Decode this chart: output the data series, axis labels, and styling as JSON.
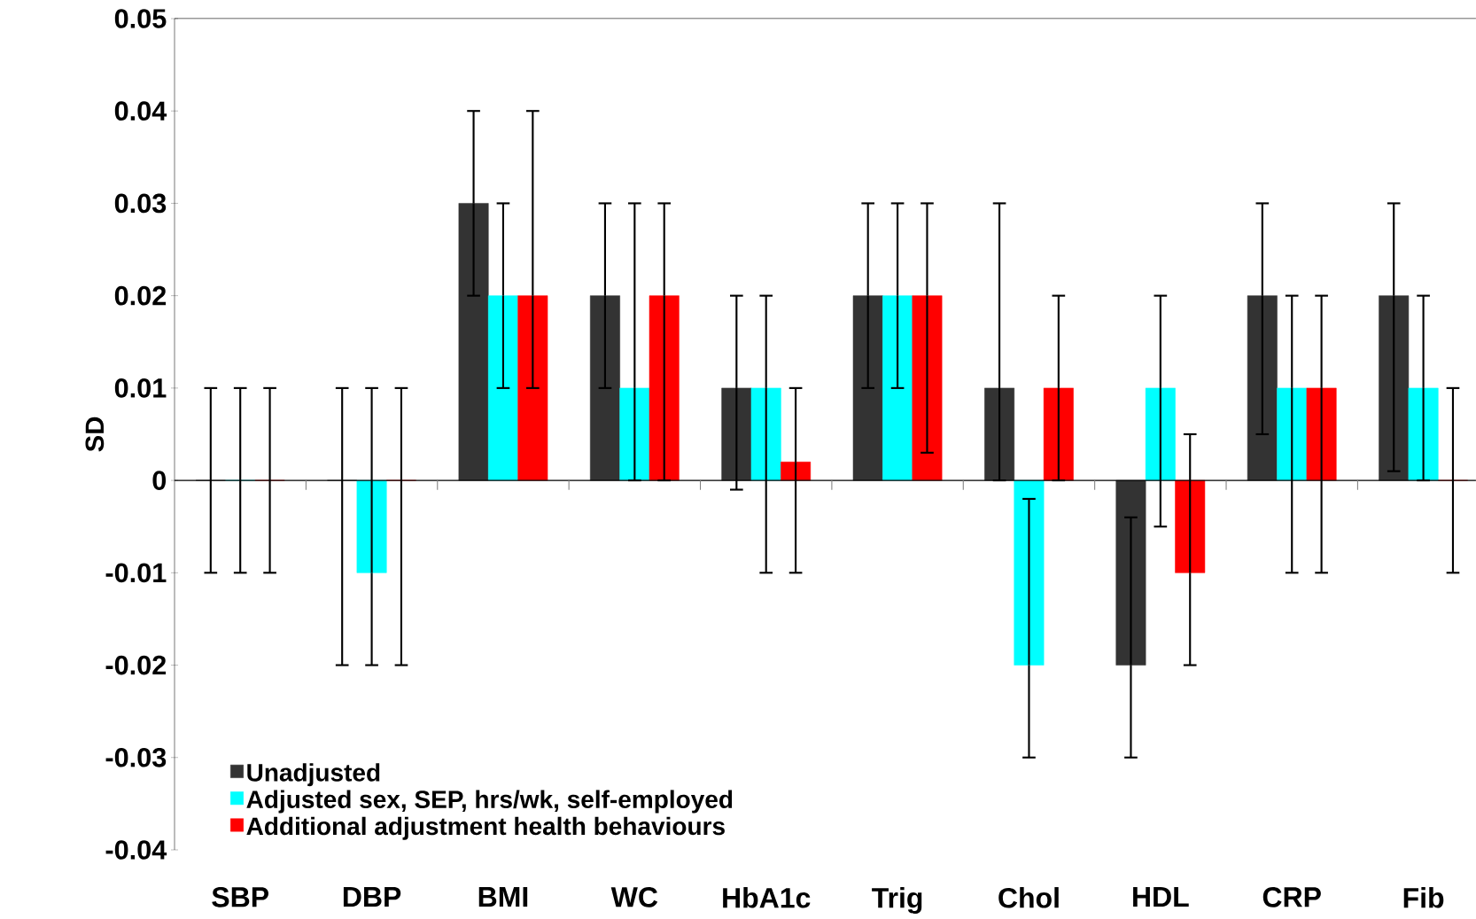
{
  "chart_data": {
    "type": "bar",
    "ylabel": "SD",
    "categories": [
      "SBP",
      "DBP",
      "BMI",
      "WC",
      "HbA1c",
      "Trig",
      "Chol",
      "HDL",
      "CRP",
      "Fib"
    ],
    "series": [
      {
        "name": "Unadjusted",
        "color": "#333333",
        "values": [
          0,
          0,
          0.03,
          0.02,
          0.01,
          0.02,
          0.01,
          -0.02,
          0.02,
          0.02
        ],
        "errors": [
          [
            -0.01,
            0.01
          ],
          [
            -0.02,
            0.01
          ],
          [
            0.02,
            0.04
          ],
          [
            0.01,
            0.03
          ],
          [
            -0.001,
            0.02
          ],
          [
            0.01,
            0.03
          ],
          [
            0,
            0.03
          ],
          [
            -0.03,
            -0.004
          ],
          [
            0.005,
            0.03
          ],
          [
            0.001,
            0.03
          ]
        ]
      },
      {
        "name": "Adjusted sex, SEP, hrs/wk, self-employed",
        "color": "#00ffff",
        "values": [
          0,
          -0.01,
          0.02,
          0.01,
          0.01,
          0.02,
          -0.02,
          0.01,
          0.01,
          0.01
        ],
        "errors": [
          [
            -0.01,
            0.01
          ],
          [
            -0.02,
            0.01
          ],
          [
            0.01,
            0.03
          ],
          [
            0,
            0.03
          ],
          [
            -0.01,
            0.02
          ],
          [
            0.01,
            0.03
          ],
          [
            -0.03,
            -0.002
          ],
          [
            -0.005,
            0.02
          ],
          [
            -0.01,
            0.02
          ],
          [
            0,
            0.02
          ]
        ]
      },
      {
        "name": "Additional adjustment health behaviours",
        "color": "#ff0000",
        "values": [
          0,
          0,
          0.02,
          0.02,
          0.002,
          0.02,
          0.01,
          -0.01,
          0.01,
          0
        ],
        "errors": [
          [
            -0.01,
            0.01
          ],
          [
            -0.02,
            0.01
          ],
          [
            0.01,
            0.04
          ],
          [
            0,
            0.03
          ],
          [
            -0.01,
            0.01
          ],
          [
            0.003,
            0.03
          ],
          [
            0,
            0.02
          ],
          [
            -0.02,
            0.005
          ],
          [
            -0.01,
            0.02
          ],
          [
            -0.01,
            0.01
          ]
        ]
      }
    ],
    "ylim": [
      -0.04,
      0.05
    ],
    "yticks": [
      -0.04,
      -0.03,
      -0.02,
      -0.01,
      0,
      0.01,
      0.02,
      0.03,
      0.04,
      0.05
    ],
    "legend": "bottom left"
  }
}
